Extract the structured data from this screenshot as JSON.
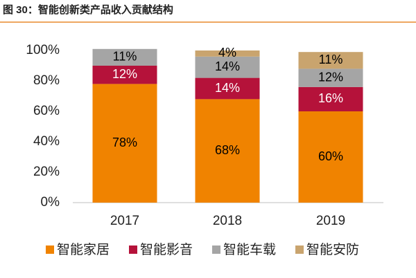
{
  "chart_data": {
    "type": "stacked_bar",
    "title": "图 30：智能创新类产品收入贡献结构",
    "categories": [
      "2017",
      "2018",
      "2019"
    ],
    "series": [
      {
        "name": "智能家居",
        "color": "#f08300",
        "values": [
          78,
          68,
          60
        ],
        "value_labels": [
          "78%",
          "68%",
          "60%"
        ],
        "label_color": "#000000"
      },
      {
        "name": "智能影音",
        "color": "#b5123a",
        "values": [
          12,
          14,
          16
        ],
        "value_labels": [
          "12%",
          "14%",
          "16%"
        ],
        "label_color": "#ffffff"
      },
      {
        "name": "智能车载",
        "color": "#a5a5a5",
        "values": [
          11,
          14,
          12
        ],
        "value_labels": [
          "11%",
          "14%",
          "12%"
        ],
        "label_color": "#000000"
      },
      {
        "name": "智能安防",
        "color": "#c9a46e",
        "values": [
          null,
          4,
          11
        ],
        "value_labels": [
          null,
          "4%",
          "11%"
        ],
        "label_color": "#000000"
      }
    ],
    "ylim": [
      0,
      100
    ],
    "yticks": [
      {
        "value": 0,
        "label": "0%"
      },
      {
        "value": 20,
        "label": "20%"
      },
      {
        "value": 40,
        "label": "40%"
      },
      {
        "value": 60,
        "label": "60%"
      },
      {
        "value": 80,
        "label": "80%"
      },
      {
        "value": 100,
        "label": "100%"
      }
    ],
    "grid": false
  }
}
